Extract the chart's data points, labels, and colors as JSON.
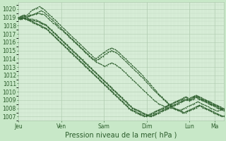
{
  "title": "Pression niveau de la mer( hPa )",
  "bg_color": "#c8e8c8",
  "plot_bg_color": "#d8eed8",
  "grid_color_major": "#b0ccb0",
  "grid_color_minor": "#c4dcc4",
  "line_color": "#2a5c2a",
  "ylim": [
    1006.5,
    1020.8
  ],
  "yticks": [
    1007,
    1008,
    1009,
    1010,
    1011,
    1012,
    1013,
    1014,
    1015,
    1016,
    1017,
    1018,
    1019,
    1020
  ],
  "xtick_labels": [
    "Jeu",
    "Ven",
    "Sam",
    "Dim",
    "Lun",
    "Ma"
  ],
  "xtick_positions": [
    0,
    0.208,
    0.417,
    0.625,
    0.833,
    0.958
  ],
  "ylabel_fontsize": 6.0,
  "xlabel_fontsize": 7.0,
  "tick_fontsize": 5.5,
  "figsize": [
    3.2,
    2.0
  ],
  "dpi": 100,
  "num_hours": 120,
  "series": [
    [
      1019.0,
      1019.0,
      1019.1,
      1019.2,
      1019.1,
      1019.1,
      1019.2,
      1019.3,
      1019.3,
      1019.4,
      1019.4,
      1019.5,
      1019.5,
      1019.4,
      1019.4,
      1019.3,
      1019.1,
      1018.9,
      1018.7,
      1018.5,
      1018.3,
      1018.2,
      1018.0,
      1017.8,
      1017.6,
      1017.5,
      1017.3,
      1017.1,
      1016.9,
      1016.7,
      1016.5,
      1016.3,
      1016.1,
      1015.9,
      1015.7,
      1015.5,
      1015.3,
      1015.1,
      1014.9,
      1014.7,
      1014.5,
      1014.3,
      1014.1,
      1013.9,
      1013.8,
      1013.6,
      1013.5,
      1013.4,
      1013.3,
      1013.2,
      1013.1,
      1013.2,
      1013.3,
      1013.4,
      1013.5,
      1013.4,
      1013.3,
      1013.2,
      1013.0,
      1012.9,
      1012.7,
      1012.5,
      1012.3,
      1012.1,
      1011.9,
      1011.7,
      1011.5,
      1011.3,
      1011.1,
      1010.9,
      1010.7,
      1010.5,
      1010.3,
      1010.1,
      1009.9,
      1009.7,
      1009.5,
      1009.3,
      1009.1,
      1008.9,
      1008.8,
      1008.6,
      1008.5,
      1008.4,
      1008.3,
      1008.2,
      1008.1,
      1008.1,
      1008.2,
      1008.1,
      1008.0,
      1007.9,
      1007.8,
      1007.8,
      1007.8,
      1007.9,
      1008.0,
      1008.1,
      1008.2,
      1008.3,
      1008.4,
      1008.5,
      1008.6,
      1008.7,
      1008.8,
      1008.7,
      1008.6,
      1008.5,
      1008.4,
      1008.3,
      1008.2,
      1008.1,
      1008.0,
      1007.9,
      1007.8,
      1007.7,
      1007.7,
      1007.8,
      1007.9,
      1008.0
    ],
    [
      1019.0,
      1019.1,
      1019.2,
      1019.3,
      1019.2,
      1019.3,
      1019.5,
      1019.7,
      1019.9,
      1020.0,
      1020.1,
      1020.2,
      1020.3,
      1020.2,
      1020.1,
      1019.9,
      1019.7,
      1019.5,
      1019.3,
      1019.1,
      1018.9,
      1018.7,
      1018.5,
      1018.3,
      1018.1,
      1017.9,
      1017.7,
      1017.5,
      1017.3,
      1017.1,
      1016.9,
      1016.7,
      1016.5,
      1016.3,
      1016.1,
      1015.9,
      1015.7,
      1015.5,
      1015.3,
      1015.1,
      1014.9,
      1014.7,
      1014.5,
      1014.3,
      1014.1,
      1014.0,
      1014.2,
      1014.4,
      1014.5,
      1014.7,
      1014.8,
      1015.0,
      1015.1,
      1015.2,
      1015.3,
      1015.2,
      1015.1,
      1015.0,
      1014.8,
      1014.6,
      1014.4,
      1014.2,
      1014.0,
      1013.8,
      1013.6,
      1013.4,
      1013.2,
      1013.0,
      1012.8,
      1012.6,
      1012.4,
      1012.2,
      1012.0,
      1011.7,
      1011.5,
      1011.3,
      1011.0,
      1010.8,
      1010.5,
      1010.3,
      1010.1,
      1009.8,
      1009.6,
      1009.4,
      1009.2,
      1009.0,
      1008.8,
      1008.6,
      1008.5,
      1008.3,
      1008.1,
      1008.0,
      1007.9,
      1007.8,
      1007.7,
      1007.6,
      1007.5,
      1007.5,
      1007.6,
      1007.7,
      1007.8,
      1007.9,
      1008.0,
      1008.1,
      1008.2,
      1008.3,
      1008.2,
      1008.1,
      1008.0,
      1007.9,
      1007.8,
      1007.7,
      1007.6,
      1007.5,
      1007.4,
      1007.3,
      1007.2,
      1007.1,
      1007.0,
      1007.1
    ],
    [
      1018.9,
      1019.0,
      1019.0,
      1019.1,
      1019.0,
      1019.0,
      1019.1,
      1019.2,
      1019.3,
      1019.4,
      1019.5,
      1019.6,
      1019.7,
      1019.8,
      1019.7,
      1019.6,
      1019.4,
      1019.2,
      1019.0,
      1018.8,
      1018.6,
      1018.4,
      1018.2,
      1018.0,
      1017.8,
      1017.6,
      1017.4,
      1017.2,
      1017.0,
      1016.8,
      1016.6,
      1016.4,
      1016.2,
      1016.0,
      1015.8,
      1015.6,
      1015.4,
      1015.2,
      1015.0,
      1014.8,
      1014.6,
      1014.4,
      1014.2,
      1014.0,
      1013.9,
      1013.8,
      1013.9,
      1014.0,
      1014.2,
      1014.3,
      1014.5,
      1014.6,
      1014.8,
      1014.9,
      1015.0,
      1014.9,
      1014.8,
      1014.7,
      1014.5,
      1014.3,
      1014.1,
      1013.9,
      1013.7,
      1013.5,
      1013.3,
      1013.1,
      1012.9,
      1012.7,
      1012.5,
      1012.3,
      1012.1,
      1011.9,
      1011.7,
      1011.5,
      1011.2,
      1011.0,
      1010.8,
      1010.5,
      1010.3,
      1010.1,
      1009.9,
      1009.7,
      1009.5,
      1009.3,
      1009.1,
      1008.9,
      1008.7,
      1008.5,
      1008.3,
      1008.1,
      1008.0,
      1007.9,
      1007.8,
      1007.7,
      1007.6,
      1007.5,
      1007.5,
      1007.6,
      1007.7,
      1007.8,
      1007.9,
      1008.0,
      1008.1,
      1008.2,
      1008.3,
      1008.4,
      1008.3,
      1008.2,
      1008.1,
      1008.0,
      1007.9,
      1007.8,
      1007.7,
      1007.6,
      1007.5,
      1007.4,
      1007.3,
      1007.2,
      1007.1,
      1007.0
    ],
    [
      1018.9,
      1018.9,
      1019.0,
      1019.0,
      1018.9,
      1018.9,
      1018.8,
      1018.8,
      1018.8,
      1018.7,
      1018.7,
      1018.6,
      1018.5,
      1018.4,
      1018.3,
      1018.2,
      1018.1,
      1017.9,
      1017.7,
      1017.5,
      1017.3,
      1017.1,
      1016.9,
      1016.7,
      1016.5,
      1016.3,
      1016.1,
      1015.9,
      1015.7,
      1015.5,
      1015.3,
      1015.1,
      1014.9,
      1014.7,
      1014.5,
      1014.3,
      1014.1,
      1013.9,
      1013.7,
      1013.5,
      1013.3,
      1013.1,
      1012.9,
      1012.7,
      1012.5,
      1012.3,
      1012.1,
      1011.9,
      1011.7,
      1011.5,
      1011.3,
      1011.1,
      1010.9,
      1010.7,
      1010.5,
      1010.3,
      1010.1,
      1009.9,
      1009.7,
      1009.5,
      1009.3,
      1009.1,
      1008.9,
      1008.7,
      1008.5,
      1008.3,
      1008.1,
      1008.0,
      1007.9,
      1007.8,
      1007.7,
      1007.6,
      1007.5,
      1007.4,
      1007.3,
      1007.2,
      1007.1,
      1007.0,
      1007.1,
      1007.2,
      1007.3,
      1007.4,
      1007.5,
      1007.6,
      1007.7,
      1007.8,
      1007.9,
      1008.0,
      1008.1,
      1008.2,
      1008.3,
      1008.4,
      1008.5,
      1008.6,
      1008.7,
      1008.8,
      1008.9,
      1009.0,
      1009.1,
      1009.0,
      1009.1,
      1009.2,
      1009.3,
      1009.4,
      1009.3,
      1009.2,
      1009.1,
      1009.0,
      1008.9,
      1008.8,
      1008.7,
      1008.6,
      1008.5,
      1008.4,
      1008.3,
      1008.2,
      1008.1,
      1008.0,
      1007.9,
      1007.8
    ],
    [
      1018.8,
      1018.8,
      1018.9,
      1018.9,
      1018.8,
      1018.8,
      1018.7,
      1018.7,
      1018.6,
      1018.6,
      1018.5,
      1018.5,
      1018.4,
      1018.3,
      1018.2,
      1018.1,
      1018.0,
      1017.8,
      1017.6,
      1017.4,
      1017.2,
      1017.0,
      1016.8,
      1016.6,
      1016.4,
      1016.2,
      1016.0,
      1015.8,
      1015.6,
      1015.4,
      1015.2,
      1015.0,
      1014.8,
      1014.6,
      1014.4,
      1014.2,
      1014.0,
      1013.8,
      1013.6,
      1013.4,
      1013.2,
      1013.0,
      1012.8,
      1012.6,
      1012.4,
      1012.2,
      1012.0,
      1011.8,
      1011.6,
      1011.4,
      1011.2,
      1011.0,
      1010.8,
      1010.6,
      1010.4,
      1010.2,
      1010.0,
      1009.8,
      1009.6,
      1009.4,
      1009.2,
      1009.0,
      1008.8,
      1008.6,
      1008.4,
      1008.2,
      1008.0,
      1007.9,
      1007.8,
      1007.7,
      1007.6,
      1007.5,
      1007.4,
      1007.3,
      1007.2,
      1007.1,
      1007.0,
      1007.1,
      1007.2,
      1007.3,
      1007.4,
      1007.5,
      1007.6,
      1007.7,
      1007.8,
      1007.9,
      1008.0,
      1008.1,
      1008.2,
      1008.3,
      1008.4,
      1008.5,
      1008.6,
      1008.7,
      1008.8,
      1008.9,
      1009.0,
      1009.1,
      1009.0,
      1008.9,
      1009.0,
      1009.1,
      1009.2,
      1009.3,
      1009.2,
      1009.1,
      1009.0,
      1008.9,
      1008.8,
      1008.7,
      1008.6,
      1008.5,
      1008.4,
      1008.3,
      1008.2,
      1008.1,
      1008.0,
      1007.9,
      1007.8,
      1007.7
    ],
    [
      1018.8,
      1018.8,
      1018.9,
      1018.9,
      1018.8,
      1018.7,
      1018.7,
      1018.6,
      1018.5,
      1018.4,
      1018.3,
      1018.2,
      1018.1,
      1018.0,
      1017.9,
      1017.8,
      1017.7,
      1017.5,
      1017.3,
      1017.1,
      1016.9,
      1016.7,
      1016.5,
      1016.3,
      1016.1,
      1015.9,
      1015.7,
      1015.5,
      1015.3,
      1015.1,
      1014.9,
      1014.7,
      1014.5,
      1014.3,
      1014.1,
      1013.9,
      1013.7,
      1013.5,
      1013.3,
      1013.1,
      1012.9,
      1012.7,
      1012.5,
      1012.3,
      1012.1,
      1011.9,
      1011.7,
      1011.5,
      1011.3,
      1011.1,
      1010.9,
      1010.7,
      1010.5,
      1010.3,
      1010.1,
      1009.9,
      1009.7,
      1009.5,
      1009.3,
      1009.1,
      1008.9,
      1008.7,
      1008.5,
      1008.3,
      1008.1,
      1007.9,
      1007.8,
      1007.7,
      1007.6,
      1007.5,
      1007.4,
      1007.3,
      1007.2,
      1007.1,
      1007.0,
      1007.1,
      1007.2,
      1007.3,
      1007.4,
      1007.5,
      1007.6,
      1007.7,
      1007.8,
      1007.9,
      1008.0,
      1008.1,
      1008.2,
      1008.3,
      1008.4,
      1008.5,
      1008.6,
      1008.7,
      1008.8,
      1008.9,
      1009.0,
      1009.1,
      1009.2,
      1009.3,
      1009.2,
      1009.1,
      1009.2,
      1009.3,
      1009.4,
      1009.5,
      1009.4,
      1009.3,
      1009.2,
      1009.1,
      1009.0,
      1008.9,
      1008.8,
      1008.7,
      1008.6,
      1008.5,
      1008.4,
      1008.3,
      1008.2,
      1008.1,
      1008.0,
      1007.9
    ],
    [
      1018.8,
      1018.8,
      1018.8,
      1018.9,
      1018.8,
      1018.7,
      1018.6,
      1018.5,
      1018.4,
      1018.3,
      1018.2,
      1018.1,
      1018.0,
      1017.9,
      1017.8,
      1017.7,
      1017.6,
      1017.4,
      1017.2,
      1017.0,
      1016.8,
      1016.6,
      1016.4,
      1016.2,
      1016.0,
      1015.8,
      1015.6,
      1015.4,
      1015.2,
      1015.0,
      1014.8,
      1014.6,
      1014.4,
      1014.2,
      1014.0,
      1013.8,
      1013.6,
      1013.4,
      1013.2,
      1013.0,
      1012.8,
      1012.6,
      1012.4,
      1012.2,
      1012.0,
      1011.8,
      1011.6,
      1011.4,
      1011.2,
      1011.0,
      1010.8,
      1010.6,
      1010.4,
      1010.2,
      1010.0,
      1009.8,
      1009.6,
      1009.4,
      1009.2,
      1009.0,
      1008.8,
      1008.6,
      1008.4,
      1008.2,
      1008.0,
      1007.8,
      1007.7,
      1007.6,
      1007.5,
      1007.4,
      1007.3,
      1007.2,
      1007.1,
      1007.0,
      1007.1,
      1007.2,
      1007.3,
      1007.4,
      1007.5,
      1007.6,
      1007.7,
      1007.8,
      1007.9,
      1008.0,
      1008.1,
      1008.2,
      1008.3,
      1008.4,
      1008.5,
      1008.6,
      1008.7,
      1008.8,
      1008.9,
      1009.0,
      1009.1,
      1009.2,
      1009.3,
      1009.4,
      1009.3,
      1009.2,
      1009.3,
      1009.4,
      1009.5,
      1009.6,
      1009.5,
      1009.4,
      1009.3,
      1009.2,
      1009.1,
      1009.0,
      1008.9,
      1008.8,
      1008.7,
      1008.6,
      1008.5,
      1008.4,
      1008.3,
      1008.2,
      1008.1,
      1008.0
    ]
  ]
}
